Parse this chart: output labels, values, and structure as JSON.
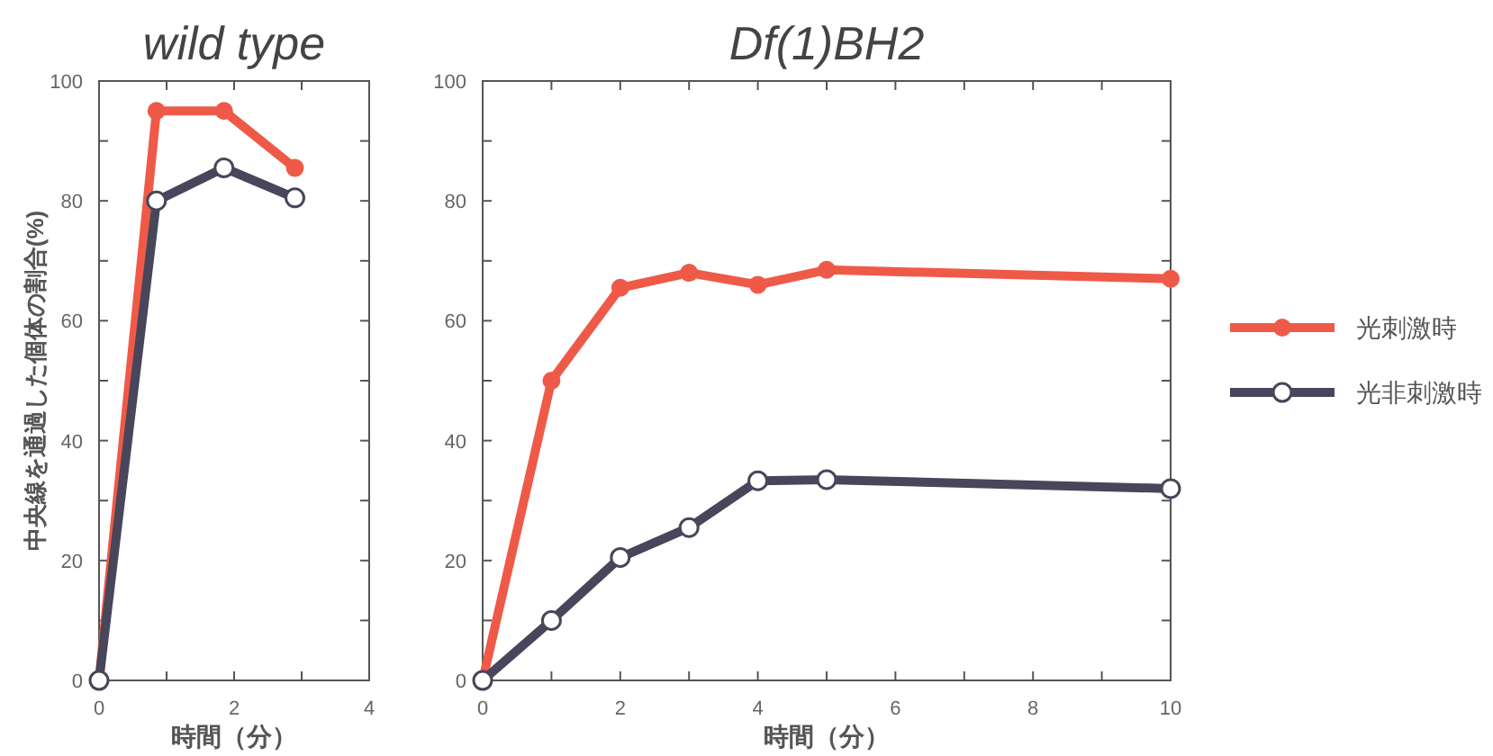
{
  "chart_data": [
    {
      "type": "line",
      "title": "wild type",
      "xlabel": "時間（分）",
      "ylabel": "中央線を通過した個体の割合(%)",
      "xlim": [
        0,
        4
      ],
      "xticks": [
        0,
        {
          "value": 1,
          "label": null
        },
        2,
        {
          "value": 3,
          "label": null
        },
        4
      ],
      "ylim": [
        0,
        100
      ],
      "yticks": [
        0,
        {
          "value": 10,
          "label": null
        },
        20,
        {
          "value": 30,
          "label": null
        },
        40,
        {
          "value": 50,
          "label": null
        },
        60,
        {
          "value": 70,
          "label": null
        },
        80,
        {
          "value": 90,
          "label": null
        },
        100
      ],
      "grid": false,
      "legend": false,
      "line_style": "solid",
      "series": [
        {
          "color": "#ef5a48",
          "marker": "circle_filled",
          "x": [
            0,
            0.85,
            1.85,
            2.9
          ],
          "values": [
            0,
            95,
            95,
            85.5
          ]
        },
        {
          "color": "#47465a",
          "marker": "circle_open",
          "x": [
            0,
            0.85,
            1.85,
            2.9
          ],
          "values": [
            0,
            80,
            85.5,
            80.5
          ]
        }
      ]
    },
    {
      "type": "line",
      "title": "Df(1)BH2",
      "xlabel": "時間（分）",
      "xlim": [
        0,
        10
      ],
      "xticks": [
        0,
        {
          "value": 1,
          "label": null
        },
        2,
        {
          "value": 3,
          "label": null
        },
        4,
        {
          "value": 5,
          "label": null
        },
        6,
        {
          "value": 7,
          "label": null
        },
        8,
        {
          "value": 9,
          "label": null
        },
        10
      ],
      "ylim": [
        0,
        100
      ],
      "yticks": [
        0,
        {
          "value": 10,
          "label": null
        },
        20,
        {
          "value": 30,
          "label": null
        },
        40,
        {
          "value": 50,
          "label": null
        },
        60,
        {
          "value": 70,
          "label": null
        },
        80,
        {
          "value": 90,
          "label": null
        },
        100
      ],
      "grid": false,
      "legend": "right",
      "line_style": "solid",
      "series": [
        {
          "name": "光刺激時",
          "color": "#ef5a48",
          "marker": "circle_filled",
          "x": [
            0,
            1,
            2,
            3,
            4,
            5,
            10
          ],
          "values": [
            0,
            50,
            65.5,
            68,
            66,
            68.5,
            67
          ]
        },
        {
          "name": "光非刺激時",
          "color": "#47465a",
          "marker": "circle_open",
          "x": [
            0,
            1,
            2,
            3,
            4,
            5,
            10
          ],
          "values": [
            0,
            10,
            20.5,
            25.5,
            33.3,
            33.5,
            32
          ]
        }
      ]
    }
  ]
}
